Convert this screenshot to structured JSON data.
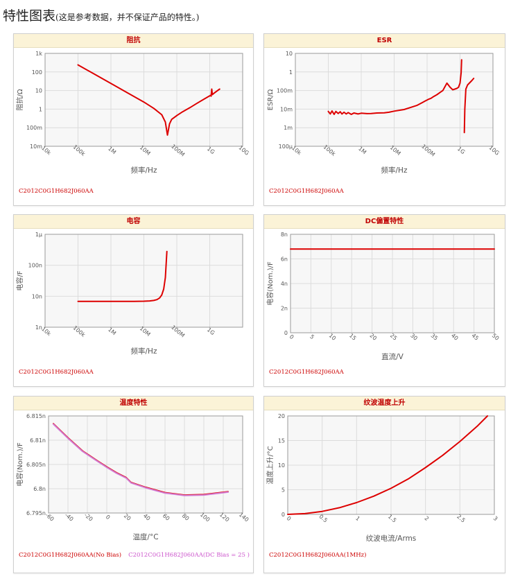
{
  "page": {
    "title": "特性图表",
    "note": "(这是参考数据，并不保证产品的特性。)"
  },
  "chart_data": [
    {
      "id": "impedance",
      "type": "line",
      "title": "阻抗",
      "xlabel": "频率/Hz",
      "ylabel": "阻抗/Ω",
      "xscale": "log",
      "yscale": "log",
      "xlim": [
        10000,
        10000000000
      ],
      "ylim": [
        0.01,
        1000
      ],
      "xticks": [
        {
          "v": 10000,
          "label": "10k"
        },
        {
          "v": 100000,
          "label": "100k"
        },
        {
          "v": 1000000,
          "label": "1M"
        },
        {
          "v": 10000000,
          "label": "10M"
        },
        {
          "v": 100000000,
          "label": "100M"
        },
        {
          "v": 1000000000,
          "label": "1G"
        },
        {
          "v": 10000000000,
          "label": "10G"
        }
      ],
      "yticks": [
        {
          "v": 0.01,
          "label": "10m"
        },
        {
          "v": 0.1,
          "label": "100m"
        },
        {
          "v": 1,
          "label": "1"
        },
        {
          "v": 10,
          "label": "10"
        },
        {
          "v": 100,
          "label": "100"
        },
        {
          "v": 1000,
          "label": "1k"
        }
      ],
      "grid": true,
      "series": [
        {
          "color": "#dd0000",
          "x": [
            100000,
            300000,
            1000000,
            3000000,
            10000000,
            20000000,
            35000000,
            45000000,
            52000000,
            60000000,
            70000000,
            100000000,
            150000000,
            250000000,
            400000000,
            700000000,
            1050000000,
            1100000000,
            1150000000,
            1200000000,
            1300000000,
            1600000000,
            2000000000
          ],
          "y": [
            240,
            80,
            24,
            8,
            2.4,
            1.1,
            0.5,
            0.2,
            0.04,
            0.16,
            0.28,
            0.45,
            0.72,
            1.2,
            2.0,
            3.6,
            5.5,
            5.0,
            12,
            6.0,
            6.8,
            9.0,
            12
          ]
        }
      ],
      "legend": [
        {
          "text": "C2012C0G1H682J060AA",
          "color": "#cc0000"
        }
      ]
    },
    {
      "id": "esr",
      "type": "line",
      "title": "ESR",
      "xlabel": "频率/Hz",
      "ylabel": "ESR/Ω",
      "xscale": "log",
      "yscale": "log",
      "xlim": [
        10000,
        10000000000
      ],
      "ylim": [
        0.0001,
        10
      ],
      "xticks": [
        {
          "v": 10000,
          "label": "10k"
        },
        {
          "v": 100000,
          "label": "100k"
        },
        {
          "v": 1000000,
          "label": "1M"
        },
        {
          "v": 10000000,
          "label": "10M"
        },
        {
          "v": 100000000,
          "label": "100M"
        },
        {
          "v": 1000000000,
          "label": "1G"
        },
        {
          "v": 10000000000,
          "label": "10G"
        }
      ],
      "yticks": [
        {
          "v": 0.0001,
          "label": "100μ"
        },
        {
          "v": 0.001,
          "label": "1m"
        },
        {
          "v": 0.01,
          "label": "10m"
        },
        {
          "v": 0.1,
          "label": "100m"
        },
        {
          "v": 1,
          "label": "1"
        },
        {
          "v": 10,
          "label": "10"
        }
      ],
      "grid": true,
      "series": [
        {
          "color": "#dd0000",
          "x": [
            100000,
            115000,
            130000,
            150000,
            170000,
            200000,
            230000,
            260000,
            300000,
            350000,
            400000,
            500000,
            600000,
            800000,
            1000000,
            1500000,
            2000000,
            3000000,
            5000000,
            7000000,
            10000000,
            20000000,
            30000000,
            50000000,
            70000000,
            90000000,
            110000000,
            130000000,
            150000000,
            200000000,
            250000000,
            300000000,
            400000000,
            500000000,
            600000000,
            700000000,
            800000000,
            900000000,
            1000000000,
            1080000000,
            1120000000
          ],
          "y": [
            0.0075,
            0.0055,
            0.008,
            0.0052,
            0.0075,
            0.0058,
            0.0072,
            0.0055,
            0.0068,
            0.0055,
            0.0065,
            0.0052,
            0.0062,
            0.0055,
            0.006,
            0.0057,
            0.0058,
            0.0062,
            0.0063,
            0.0068,
            0.0078,
            0.0095,
            0.012,
            0.016,
            0.022,
            0.028,
            0.034,
            0.038,
            0.045,
            0.06,
            0.08,
            0.1,
            0.25,
            0.15,
            0.11,
            0.12,
            0.13,
            0.15,
            0.25,
            0.9,
            4.5
          ]
        },
        {
          "color": "#dd0000",
          "x": [
            1350000000,
            1400000000,
            1500000000,
            1700000000,
            2000000000,
            2300000000,
            2600000000
          ],
          "y": [
            0.00055,
            0.01,
            0.12,
            0.2,
            0.27,
            0.35,
            0.45
          ]
        }
      ],
      "legend": [
        {
          "text": "C2012C0G1H682J060AA",
          "color": "#cc0000"
        }
      ]
    },
    {
      "id": "capacitance",
      "type": "line",
      "title": "电容",
      "xlabel": "频率/Hz",
      "ylabel": "电容/F",
      "xscale": "log",
      "yscale": "log",
      "xlim": [
        10000,
        10000000000
      ],
      "ylim": [
        1e-09,
        1e-06
      ],
      "xticks": [
        {
          "v": 10000,
          "label": "10k"
        },
        {
          "v": 100000,
          "label": "100k"
        },
        {
          "v": 1000000,
          "label": "1M"
        },
        {
          "v": 10000000,
          "label": "10M"
        },
        {
          "v": 100000000,
          "label": "100M"
        },
        {
          "v": 1000000000,
          "label": "1G"
        }
      ],
      "yticks": [
        {
          "v": 1e-09,
          "label": "1n"
        },
        {
          "v": 1e-08,
          "label": "10n"
        },
        {
          "v": 1e-07,
          "label": "100n"
        },
        {
          "v": 1e-06,
          "label": "1μ"
        }
      ],
      "grid": true,
      "series": [
        {
          "color": "#dd0000",
          "x": [
            100000,
            1000000,
            5000000,
            10000000,
            15000000,
            20000000,
            25000000,
            30000000,
            35000000,
            40000000,
            45000000,
            50000000
          ],
          "y": [
            6.82e-09,
            6.82e-09,
            6.84e-09,
            6.9e-09,
            7.05e-09,
            7.3e-09,
            7.8e-09,
            8.8e-09,
            1.1e-08,
            1.7e-08,
            4e-08,
            2.8e-07
          ]
        }
      ],
      "legend": [
        {
          "text": "C2012C0G1H682J060AA",
          "color": "#cc0000"
        }
      ]
    },
    {
      "id": "dc-bias",
      "type": "line",
      "title": "DC偏置特性",
      "xlabel": "直流/V",
      "ylabel": "电容(Nom.)/F",
      "xscale": "linear",
      "yscale": "linear",
      "xlim": [
        0,
        50
      ],
      "ylim": [
        0,
        8e-09
      ],
      "xticks": [
        {
          "v": 0,
          "label": "0"
        },
        {
          "v": 5,
          "label": "5"
        },
        {
          "v": 10,
          "label": "10"
        },
        {
          "v": 15,
          "label": "15"
        },
        {
          "v": 20,
          "label": "20"
        },
        {
          "v": 25,
          "label": "25"
        },
        {
          "v": 30,
          "label": "30"
        },
        {
          "v": 35,
          "label": "35"
        },
        {
          "v": 40,
          "label": "40"
        },
        {
          "v": 45,
          "label": "45"
        },
        {
          "v": 50,
          "label": "50"
        }
      ],
      "yticks": [
        {
          "v": 0,
          "label": "0"
        },
        {
          "v": 2e-09,
          "label": "2n"
        },
        {
          "v": 4e-09,
          "label": "4n"
        },
        {
          "v": 6e-09,
          "label": "6n"
        },
        {
          "v": 8e-09,
          "label": "8n"
        }
      ],
      "grid": true,
      "series": [
        {
          "color": "#dd0000",
          "x": [
            0,
            50
          ],
          "y": [
            6.8e-09,
            6.8e-09
          ]
        }
      ],
      "legend": [
        {
          "text": "C2012C0G1H682J060AA",
          "color": "#cc0000"
        }
      ]
    },
    {
      "id": "temperature",
      "type": "line",
      "title": "温度特性",
      "xlabel": "温度/°C",
      "ylabel": "电容(Nom.)/F",
      "xscale": "linear",
      "yscale": "linear",
      "xlim": [
        -60,
        140
      ],
      "ylim": [
        6.795e-09,
        6.815e-09
      ],
      "xticks": [
        {
          "v": -60,
          "label": "-60"
        },
        {
          "v": -40,
          "label": "-40"
        },
        {
          "v": -20,
          "label": "-20"
        },
        {
          "v": 0,
          "label": "0"
        },
        {
          "v": 20,
          "label": "20"
        },
        {
          "v": 40,
          "label": "40"
        },
        {
          "v": 60,
          "label": "60"
        },
        {
          "v": 80,
          "label": "80"
        },
        {
          "v": 100,
          "label": "100"
        },
        {
          "v": 120,
          "label": "120"
        },
        {
          "v": 140,
          "label": "140"
        }
      ],
      "yticks": [
        {
          "v": 6.795e-09,
          "label": "6.795n"
        },
        {
          "v": 6.8e-09,
          "label": "6.8n"
        },
        {
          "v": 6.805e-09,
          "label": "6.805n"
        },
        {
          "v": 6.81e-09,
          "label": "6.81n"
        },
        {
          "v": 6.815e-09,
          "label": "6.815n"
        }
      ],
      "grid": true,
      "series": [
        {
          "name": "C2012C0G1H682J060AA(No Bias)",
          "color": "#dd0000",
          "x": [
            -55,
            -40,
            -25,
            -10,
            0,
            10,
            20,
            25,
            40,
            60,
            80,
            100,
            125
          ],
          "y": [
            6.8134e-09,
            6.8105e-09,
            6.8078e-09,
            6.8058e-09,
            6.8045e-09,
            6.8033e-09,
            6.8023e-09,
            6.8013e-09,
            6.8003e-09,
            6.7992e-09,
            6.7987e-09,
            6.7988e-09,
            6.7994e-09
          ]
        },
        {
          "name": "C2012C0G1H682J060AA(DC Bias = 25 )",
          "color": "#d27ad2",
          "x": [
            -55,
            -40,
            -25,
            -10,
            0,
            10,
            20,
            25,
            40,
            60,
            80,
            100,
            125
          ],
          "y": [
            6.8133e-09,
            6.8104e-09,
            6.8077e-09,
            6.8057e-09,
            6.8044e-09,
            6.8032e-09,
            6.8022e-09,
            6.8012e-09,
            6.8002e-09,
            6.7991e-09,
            6.7986e-09,
            6.7987e-09,
            6.7993e-09
          ]
        }
      ],
      "legend": [
        {
          "text": "C2012C0G1H682J060AA(No Bias)",
          "color": "#cc0000"
        },
        {
          "text": "C2012C0G1H682J060AA(DC Bias = 25 )",
          "color": "#cc55cc"
        }
      ]
    },
    {
      "id": "ripple",
      "type": "line",
      "title": "纹波温度上升",
      "xlabel": "纹波电流/Arms",
      "ylabel": "温度上升/°C",
      "xscale": "linear",
      "yscale": "linear",
      "xlim": [
        0,
        3
      ],
      "ylim": [
        0,
        20
      ],
      "xticks": [
        {
          "v": 0,
          "label": "0"
        },
        {
          "v": 0.5,
          "label": "0.5"
        },
        {
          "v": 1,
          "label": "1"
        },
        {
          "v": 1.5,
          "label": "1.5"
        },
        {
          "v": 2,
          "label": "2"
        },
        {
          "v": 2.5,
          "label": "2.5"
        },
        {
          "v": 3,
          "label": "3"
        }
      ],
      "yticks": [
        {
          "v": 0,
          "label": "0"
        },
        {
          "v": 5,
          "label": "5"
        },
        {
          "v": 10,
          "label": "10"
        },
        {
          "v": 15,
          "label": "15"
        },
        {
          "v": 20,
          "label": "20"
        }
      ],
      "grid": true,
      "series": [
        {
          "color": "#dd0000",
          "x": [
            0,
            0.25,
            0.5,
            0.75,
            1,
            1.25,
            1.5,
            1.75,
            2,
            2.25,
            2.5,
            2.75,
            2.9
          ],
          "y": [
            0,
            0.15,
            0.6,
            1.35,
            2.4,
            3.7,
            5.3,
            7.2,
            9.5,
            12.0,
            14.8,
            17.9,
            20
          ]
        }
      ],
      "legend": [
        {
          "text": "C2012C0G1H682J060AA(1MHz)",
          "color": "#cc0000"
        }
      ]
    }
  ]
}
